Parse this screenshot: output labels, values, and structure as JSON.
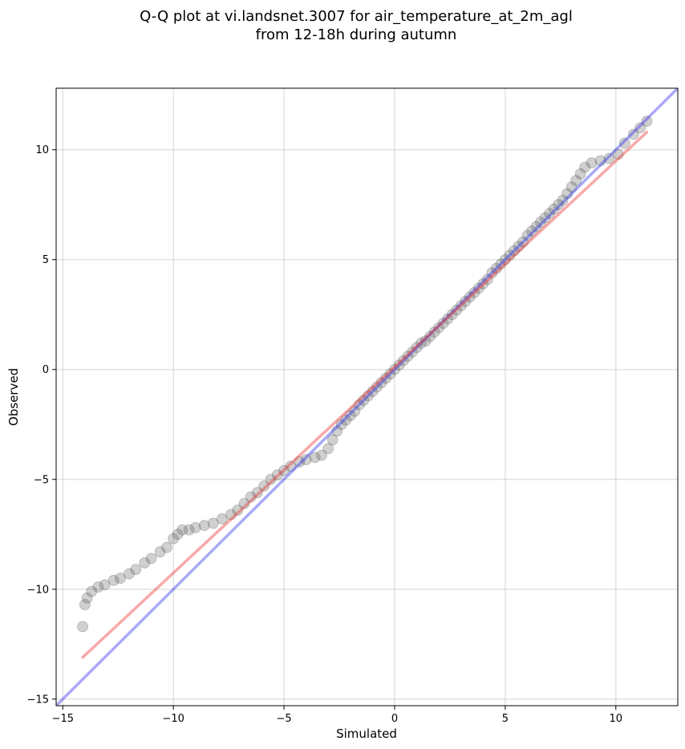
{
  "chart_data": {
    "type": "scatter",
    "title": [
      "Q-Q plot at vi.landsnet.3007 for air_temperature_at_2m_agl",
      "from 12-18h during autumn"
    ],
    "xlabel": "Simulated",
    "ylabel": "Observed",
    "xlim": [
      -15.3,
      12.8
    ],
    "ylim": [
      -15.3,
      12.8
    ],
    "xticks": [
      -15,
      -10,
      -5,
      0,
      5,
      10
    ],
    "yticks": [
      -15,
      -10,
      -5,
      0,
      5,
      10
    ],
    "xtick_labels": [
      "−15",
      "−10",
      "−5",
      "0",
      "5",
      "10"
    ],
    "ytick_labels": [
      "−15",
      "−10",
      "−5",
      "0",
      "5",
      "10"
    ],
    "grid": true,
    "series": [
      {
        "kind": "scatter",
        "color": "#555555",
        "points": [
          [
            -14.1,
            -11.7
          ],
          [
            -14.0,
            -10.7
          ],
          [
            -13.9,
            -10.4
          ],
          [
            -13.7,
            -10.1
          ],
          [
            -13.4,
            -9.9
          ],
          [
            -13.1,
            -9.8
          ],
          [
            -12.7,
            -9.6
          ],
          [
            -12.4,
            -9.5
          ],
          [
            -12.0,
            -9.3
          ],
          [
            -11.7,
            -9.1
          ],
          [
            -11.3,
            -8.8
          ],
          [
            -11.0,
            -8.6
          ],
          [
            -10.6,
            -8.3
          ],
          [
            -10.3,
            -8.1
          ],
          [
            -10.0,
            -7.7
          ],
          [
            -9.8,
            -7.5
          ],
          [
            -9.6,
            -7.3
          ],
          [
            -9.3,
            -7.3
          ],
          [
            -9.0,
            -7.2
          ],
          [
            -8.6,
            -7.1
          ],
          [
            -8.2,
            -7.0
          ],
          [
            -7.8,
            -6.8
          ],
          [
            -7.4,
            -6.6
          ],
          [
            -7.1,
            -6.4
          ],
          [
            -6.8,
            -6.1
          ],
          [
            -6.5,
            -5.8
          ],
          [
            -6.2,
            -5.6
          ],
          [
            -5.9,
            -5.3
          ],
          [
            -5.6,
            -5.0
          ],
          [
            -5.3,
            -4.8
          ],
          [
            -5.0,
            -4.6
          ],
          [
            -4.7,
            -4.4
          ],
          [
            -4.3,
            -4.2
          ],
          [
            -4.0,
            -4.1
          ],
          [
            -3.6,
            -4.0
          ],
          [
            -3.3,
            -3.9
          ],
          [
            -3.0,
            -3.6
          ],
          [
            -2.8,
            -3.2
          ],
          [
            -2.6,
            -2.8
          ],
          [
            -2.4,
            -2.5
          ],
          [
            -2.2,
            -2.3
          ],
          [
            -2.0,
            -2.1
          ],
          [
            -1.8,
            -1.9
          ],
          [
            -1.6,
            -1.6
          ],
          [
            -1.4,
            -1.4
          ],
          [
            -1.2,
            -1.2
          ],
          [
            -1.0,
            -1.0
          ],
          [
            -0.8,
            -0.8
          ],
          [
            -0.6,
            -0.6
          ],
          [
            -0.4,
            -0.4
          ],
          [
            -0.2,
            -0.2
          ],
          [
            0.0,
            0.0
          ],
          [
            0.2,
            0.2
          ],
          [
            0.4,
            0.4
          ],
          [
            0.6,
            0.6
          ],
          [
            0.8,
            0.8
          ],
          [
            1.0,
            1.0
          ],
          [
            1.2,
            1.2
          ],
          [
            1.4,
            1.3
          ],
          [
            1.6,
            1.5
          ],
          [
            1.8,
            1.7
          ],
          [
            2.0,
            1.9
          ],
          [
            2.2,
            2.1
          ],
          [
            2.4,
            2.3
          ],
          [
            2.6,
            2.5
          ],
          [
            2.8,
            2.7
          ],
          [
            3.0,
            2.9
          ],
          [
            3.2,
            3.1
          ],
          [
            3.4,
            3.3
          ],
          [
            3.6,
            3.5
          ],
          [
            3.8,
            3.7
          ],
          [
            4.0,
            3.9
          ],
          [
            4.2,
            4.1
          ],
          [
            4.4,
            4.4
          ],
          [
            4.6,
            4.6
          ],
          [
            4.8,
            4.8
          ],
          [
            5.0,
            5.0
          ],
          [
            5.2,
            5.2
          ],
          [
            5.4,
            5.4
          ],
          [
            5.6,
            5.6
          ],
          [
            5.8,
            5.8
          ],
          [
            6.0,
            6.1
          ],
          [
            6.2,
            6.3
          ],
          [
            6.4,
            6.5
          ],
          [
            6.6,
            6.7
          ],
          [
            6.8,
            6.9
          ],
          [
            7.0,
            7.1
          ],
          [
            7.2,
            7.3
          ],
          [
            7.4,
            7.5
          ],
          [
            7.6,
            7.7
          ],
          [
            7.8,
            8.0
          ],
          [
            8.0,
            8.3
          ],
          [
            8.2,
            8.6
          ],
          [
            8.4,
            8.9
          ],
          [
            8.6,
            9.2
          ],
          [
            8.9,
            9.4
          ],
          [
            9.3,
            9.5
          ],
          [
            9.7,
            9.6
          ],
          [
            10.1,
            9.8
          ],
          [
            10.4,
            10.3
          ],
          [
            10.8,
            10.7
          ],
          [
            11.1,
            11.0
          ],
          [
            11.4,
            11.3
          ]
        ]
      },
      {
        "kind": "line",
        "name": "",
        "color": "#3333ee",
        "x": [
          -15.3,
          12.8
        ],
        "y": [
          -15.3,
          12.8
        ]
      },
      {
        "kind": "line",
        "name": "",
        "color": "#ee3333",
        "x": [
          -14.1,
          11.4
        ],
        "y": [
          -13.1,
          10.8
        ]
      }
    ]
  }
}
